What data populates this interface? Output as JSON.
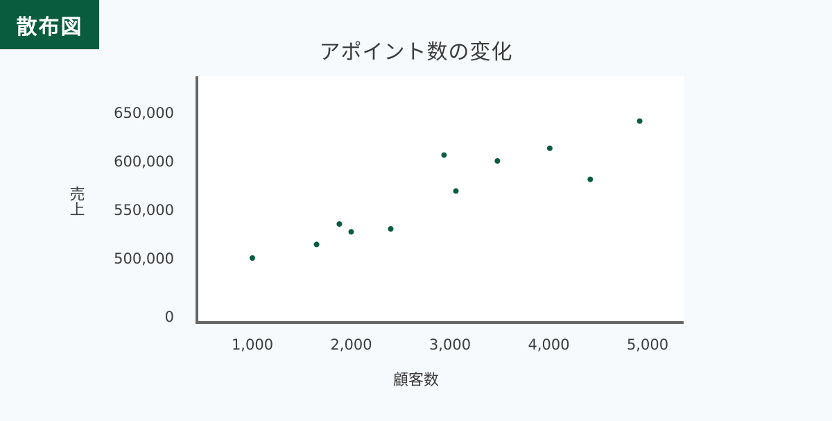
{
  "badge": {
    "label": "散布図"
  },
  "colors": {
    "badge_bg": "#0a5c3e",
    "point": "#0a5c3e",
    "axis": "#666666",
    "plot_bg": "#ffffff",
    "page_bg": "#f7fafc"
  },
  "chart_data": {
    "type": "scatter",
    "title": "アポイント数の変化",
    "xlabel": "顧客数",
    "ylabel": "売上",
    "x_ticks": [
      "1,000",
      "2,000",
      "3,000",
      "4,000",
      "5,000"
    ],
    "y_ticks": [
      "0",
      "500,000",
      "550,000",
      "600,000",
      "650,000"
    ],
    "y_axis_break": true,
    "grid": false,
    "legend": "none",
    "points": [
      {
        "x": 1000,
        "y": 500000
      },
      {
        "x": 1650,
        "y": 514000
      },
      {
        "x": 1880,
        "y": 535000
      },
      {
        "x": 2000,
        "y": 527000
      },
      {
        "x": 2400,
        "y": 530000
      },
      {
        "x": 2940,
        "y": 606000
      },
      {
        "x": 3060,
        "y": 569000
      },
      {
        "x": 3480,
        "y": 600000
      },
      {
        "x": 4010,
        "y": 613000
      },
      {
        "x": 4420,
        "y": 581000
      },
      {
        "x": 4920,
        "y": 641000
      }
    ]
  }
}
